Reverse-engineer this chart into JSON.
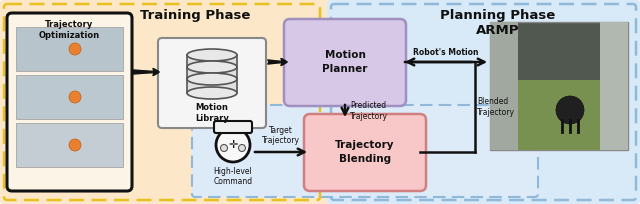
{
  "fig_width": 6.4,
  "fig_height": 2.04,
  "bg_color": "#ffffff",
  "outer_bg_orange": "#fce8c8",
  "outer_bg_blue": "#d8eaf8",
  "blend_area_bg": "#ddeaf8",
  "dashed_orange": "#e8c020",
  "dashed_blue": "#90b8d8",
  "box_traj_opt_border": "#111111",
  "box_traj_opt_bg": "#fdf4e8",
  "box_motion_planner_bg": "#d8c8e8",
  "box_motion_planner_border": "#a090c0",
  "box_traj_blend_bg": "#f8c8c8",
  "box_traj_blend_border": "#d08080",
  "arrow_color": "#111111",
  "title_training": "Training Phase",
  "title_planning": "Planning Phase\nARMP",
  "label_traj_opt": "Trajectory\nOptimization",
  "label_motion_lib": "Motion\nLibrary",
  "label_motion_planner": "Motion\nPlanner",
  "label_traj_blend": "Trajectory\nBlending",
  "label_hlc": "High-level\nCommand",
  "label_robots_motion": "Robot's Motion",
  "label_predicted_traj": "Predicted\nTrajectory",
  "label_target_traj": "Target\nTrajectory",
  "label_blended_traj": "Blended\nTrajectory"
}
